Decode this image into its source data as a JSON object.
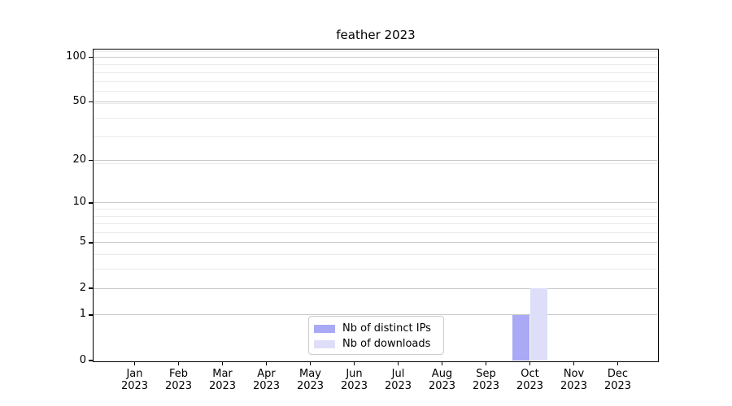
{
  "chart_data": {
    "type": "bar",
    "title": "feather 2023",
    "categories": [
      "Jan",
      "Feb",
      "Mar",
      "Apr",
      "May",
      "Jun",
      "Jul",
      "Aug",
      "Sep",
      "Oct",
      "Nov",
      "Dec"
    ],
    "year_label": "2023",
    "series": [
      {
        "name": "Nb of distinct IPs",
        "color": "#a9a9f5",
        "values": [
          0,
          0,
          0,
          0,
          0,
          0,
          0,
          0,
          0,
          1,
          0,
          0
        ]
      },
      {
        "name": "Nb of downloads",
        "color": "#dedef8",
        "values": [
          0,
          0,
          0,
          0,
          0,
          0,
          0,
          0,
          0,
          2,
          0,
          0
        ]
      }
    ],
    "y_axis": {
      "scale": "log1p",
      "ticks": [
        0,
        1,
        2,
        5,
        10,
        20,
        50,
        100
      ],
      "max": 114,
      "grid_major_values": [
        1,
        2,
        5,
        10,
        20,
        50,
        100
      ],
      "grid_minor_values": [
        3,
        4,
        6,
        7,
        8,
        9,
        19,
        29,
        39,
        49,
        59,
        69,
        79,
        89,
        109
      ]
    },
    "legend_position": "bottom-center",
    "grid": true
  },
  "colors": {
    "grid_major": "#c9c9c9",
    "grid_minor": "#ebebeb",
    "axis": "#000000",
    "background": "#ffffff"
  }
}
